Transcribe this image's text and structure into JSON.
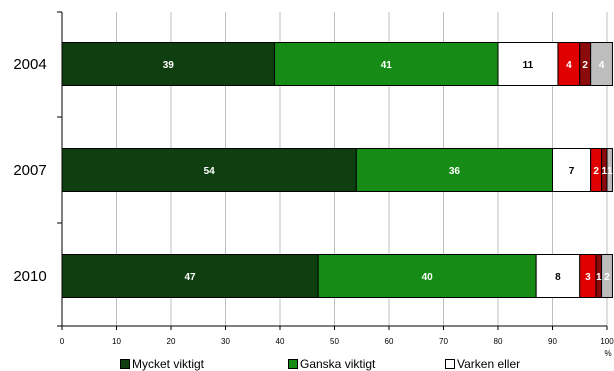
{
  "chart_data": {
    "type": "bar",
    "orientation": "horizontal",
    "stacked": true,
    "categories": [
      "2004",
      "2007",
      "2010"
    ],
    "series": [
      {
        "name": "Mycket viktigt",
        "color": "#0f3f10",
        "label_color": "#ffffff",
        "values": [
          39,
          54,
          47
        ],
        "labels": [
          "39",
          "54",
          "47"
        ]
      },
      {
        "name": "Ganska viktigt",
        "color": "#168c16",
        "label_color": "#ffffff",
        "values": [
          41,
          36,
          40
        ],
        "labels": [
          "41",
          "36",
          "40"
        ]
      },
      {
        "name": "Varken eller",
        "color": "#ffffff",
        "label_color": "#000000",
        "values": [
          11,
          7,
          8
        ],
        "labels": [
          "11",
          "7",
          "8"
        ]
      },
      {
        "name": "",
        "color": "#e00000",
        "label_color": "#ffffff",
        "values": [
          4,
          2,
          3
        ],
        "labels": [
          "4",
          "2",
          "3"
        ]
      },
      {
        "name": "",
        "color": "#8b0a0a",
        "label_color": "#ffffff",
        "values": [
          2,
          1,
          1
        ],
        "labels": [
          "2",
          "1",
          "1"
        ]
      },
      {
        "name": "",
        "color": "#bdbdbd",
        "label_color": "#ffffff",
        "values": [
          4,
          1,
          2
        ],
        "labels": [
          "4",
          "1",
          "2"
        ]
      }
    ],
    "x_ticks": [
      "0",
      "10",
      "20",
      "30",
      "40",
      "50",
      "60",
      "70",
      "80",
      "90",
      "100"
    ],
    "xlim": [
      0,
      100
    ],
    "x_unit": "%",
    "grid": true,
    "legend_position": "bottom"
  }
}
